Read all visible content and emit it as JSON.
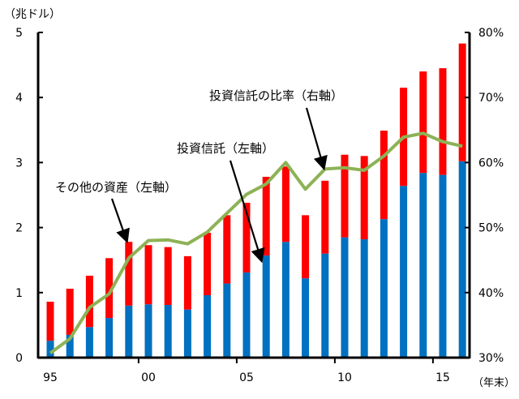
{
  "chart_data": {
    "type": "bar",
    "stacked": true,
    "title": "",
    "ylabel_left": "（兆ドル）",
    "ylabel_right": "",
    "xlabel": "（年末）",
    "x": [
      1995,
      1996,
      1997,
      1998,
      1999,
      2000,
      2001,
      2002,
      2003,
      2004,
      2005,
      2006,
      2007,
      2008,
      2009,
      2010,
      2011,
      2012,
      2013,
      2014,
      2015,
      2016
    ],
    "xtick_labels": [
      {
        "year": 1995,
        "label": "95"
      },
      {
        "year": 2000,
        "label": "00"
      },
      {
        "year": 2005,
        "label": "05"
      },
      {
        "year": 2010,
        "label": "10"
      },
      {
        "year": 2015,
        "label": "15"
      }
    ],
    "ylim_left": [
      0,
      5
    ],
    "yticks_left": [
      "0",
      "1",
      "2",
      "3",
      "4",
      "5"
    ],
    "ylim_right": [
      30,
      80
    ],
    "yticks_right": [
      "30%",
      "40%",
      "50%",
      "60%",
      "70%",
      "80%"
    ],
    "series": [
      {
        "name": "投資信託（左軸）",
        "axis": "left",
        "kind": "bar",
        "color": "#0070C0",
        "values": [
          0.26,
          0.35,
          0.47,
          0.61,
          0.8,
          0.82,
          0.81,
          0.74,
          0.96,
          1.14,
          1.31,
          1.57,
          1.78,
          1.22,
          1.6,
          1.85,
          1.82,
          2.13,
          2.64,
          2.84,
          2.81,
          3.02
        ]
      },
      {
        "name": "その他の資産（左軸）",
        "axis": "left",
        "kind": "bar",
        "color": "#FF0000",
        "values": [
          0.6,
          0.71,
          0.79,
          0.92,
          0.98,
          0.91,
          0.89,
          0.82,
          0.96,
          1.05,
          1.07,
          1.21,
          1.16,
          0.97,
          1.12,
          1.27,
          1.28,
          1.36,
          1.51,
          1.56,
          1.64,
          1.81
        ]
      },
      {
        "name": "投資信託の比率（右軸）",
        "axis": "right",
        "kind": "line",
        "color": "#8DB255",
        "values": [
          30.7,
          32.9,
          37.7,
          39.8,
          45.3,
          48.0,
          48.1,
          47.5,
          49.3,
          52.2,
          55.1,
          56.7,
          60.0,
          55.9,
          59.0,
          59.2,
          58.8,
          61.0,
          63.9,
          64.5,
          63.2,
          62.5
        ]
      }
    ],
    "annotations": [
      {
        "text": "投資信託の比率（右軸）",
        "points_to": "投資信託の比率（右軸）"
      },
      {
        "text": "投資信託（左軸）",
        "points_to": "投資信託（左軸）"
      },
      {
        "text": "その他の資産（左軸）",
        "points_to": "その他の資産（左軸）"
      }
    ],
    "grid": false,
    "legend": "none"
  }
}
